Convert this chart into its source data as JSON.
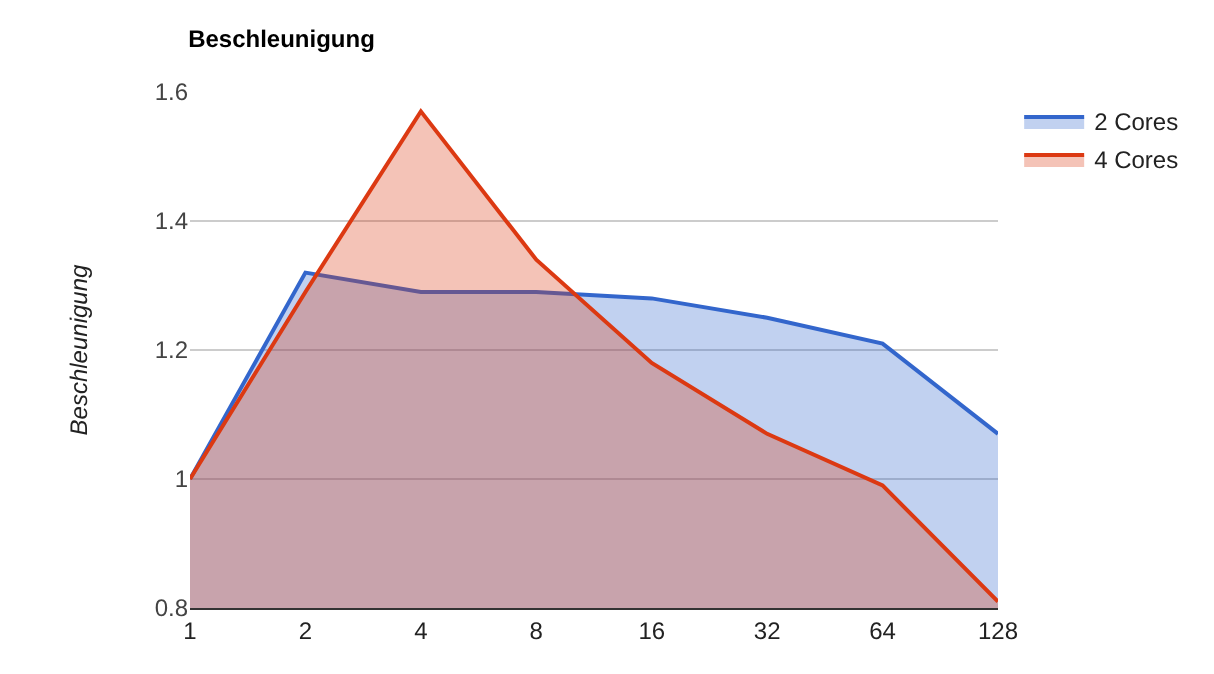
{
  "chart_data": {
    "type": "area",
    "title": "Beschleunigung",
    "ylabel": "Beschleunigung",
    "categories": [
      "1",
      "2",
      "4",
      "8",
      "16",
      "32",
      "64",
      "128"
    ],
    "series": [
      {
        "name": "2 Cores",
        "color": "#3366cc",
        "values": [
          1,
          1.32,
          1.29,
          1.29,
          1.28,
          1.25,
          1.21,
          1.07
        ]
      },
      {
        "name": "4 Cores",
        "color": "#dc3912",
        "values": [
          1,
          1.29,
          1.57,
          1.34,
          1.18,
          1.07,
          0.99,
          0.81
        ]
      }
    ],
    "ylim": [
      0.8,
      1.6
    ],
    "yticks": [
      0.8,
      1,
      1.2,
      1.4,
      1.6
    ],
    "grid": "y",
    "legend": "top right"
  }
}
